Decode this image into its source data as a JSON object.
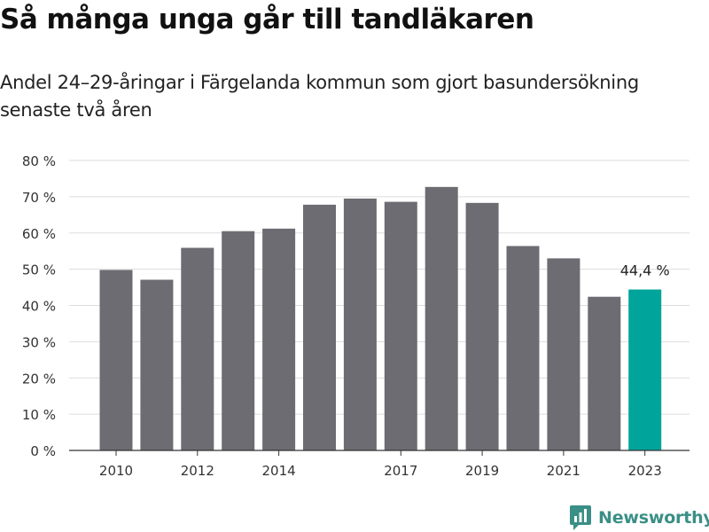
{
  "title": "Så många unga går till tandläkaren",
  "subtitle": "Andel 24–29-åringar i Färgelanda kommun som gjort basundersökning senaste två åren",
  "brand": {
    "name": "Newsworthy",
    "icon": "newsworthy-logo-icon"
  },
  "colors": {
    "bar": "#6d6c72",
    "highlight": "#00a49a",
    "grid": "#dddddd",
    "axis": "#333333",
    "brand": "#3a8f86"
  },
  "chart_data": {
    "type": "bar",
    "x": [
      2010,
      2011,
      2012,
      2013,
      2014,
      2015,
      2016,
      2017,
      2018,
      2019,
      2020,
      2021,
      2022,
      2023
    ],
    "values": [
      49.8,
      47.1,
      55.9,
      60.5,
      61.2,
      67.8,
      69.5,
      68.6,
      72.7,
      68.3,
      56.4,
      53.0,
      42.4,
      44.4
    ],
    "xtick_labels": [
      "2010",
      "2012",
      "2014",
      "2017",
      "2019",
      "2021",
      "2023"
    ],
    "ytick_labels": [
      "0 %",
      "10 %",
      "20 %",
      "30 %",
      "40 %",
      "50 %",
      "60 %",
      "70 %",
      "80 %"
    ],
    "ylim": [
      0,
      80
    ],
    "ystep": 10,
    "highlight": 2023,
    "annotation": "44,4 %",
    "grid": true,
    "xlabel": "",
    "ylabel": ""
  }
}
